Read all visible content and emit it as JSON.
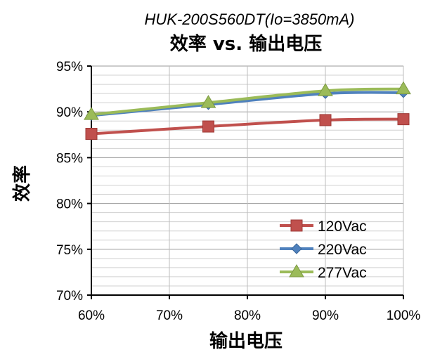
{
  "chart_data": {
    "type": "line",
    "subtitle": "HUK-200S560DT(Io=3850mA)",
    "title": "效率 vs. 输出电压",
    "xlabel": "输出电压",
    "ylabel": "效率",
    "x": [
      60,
      75,
      90,
      100
    ],
    "x_ticks": [
      "60%",
      "70%",
      "80%",
      "90%",
      "100%"
    ],
    "y_ticks": [
      "70%",
      "75%",
      "80%",
      "85%",
      "90%",
      "95%"
    ],
    "xlim": [
      60,
      100
    ],
    "ylim": [
      70,
      95
    ],
    "grid": "horizontal",
    "legend_position": "bottom-right",
    "series": [
      {
        "name": "120Vac",
        "values": [
          87.6,
          88.4,
          89.1,
          89.2
        ],
        "color": "#C0504D",
        "marker": "square"
      },
      {
        "name": "220Vac",
        "values": [
          89.6,
          90.8,
          92.0,
          92.1
        ],
        "color": "#4F81BD",
        "marker": "diamond"
      },
      {
        "name": "277Vac",
        "values": [
          89.7,
          91.0,
          92.3,
          92.5
        ],
        "color": "#9BBB59",
        "marker": "triangle"
      }
    ]
  }
}
